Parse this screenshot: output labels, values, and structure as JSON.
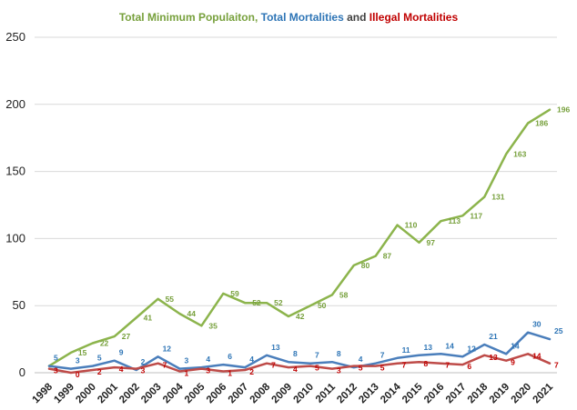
{
  "chart_data": {
    "type": "line",
    "title_parts": [
      {
        "text": "Total Minimum Populaiton, ",
        "color": "#77a03c"
      },
      {
        "text": "Total Mortalities",
        "color": "#2e75b6"
      },
      {
        "text": " and ",
        "color": "#404040"
      },
      {
        "text": "Illegal Mortalities",
        "color": "#c00000"
      }
    ],
    "x": [
      "1998",
      "1999",
      "2000",
      "2001",
      "2002",
      "2003",
      "2004",
      "2005",
      "2006",
      "2007",
      "2008",
      "2009",
      "2010",
      "2011",
      "2012",
      "2013",
      "2014",
      "2015",
      "2016",
      "2017",
      "2018",
      "2019",
      "2020",
      "2021"
    ],
    "ylim": [
      0,
      250
    ],
    "yticks": [
      0,
      50,
      100,
      150,
      200,
      250
    ],
    "grid": true,
    "series": [
      {
        "name": "Total Minimum Populaiton",
        "color": "#8cb44c",
        "label_color": "#77a03c",
        "values": [
          5,
          15,
          22,
          27,
          41,
          55,
          44,
          35,
          59,
          52,
          52,
          42,
          50,
          58,
          80,
          87,
          110,
          97,
          113,
          117,
          131,
          163,
          186,
          196
        ],
        "labels": [
          "",
          "15",
          "22",
          "27",
          "41",
          "55",
          "44",
          "35",
          "59",
          "52",
          "52",
          "42",
          "50",
          "58",
          "80",
          "87",
          "110",
          "97",
          "113",
          "117",
          "131",
          "163",
          "186",
          "196"
        ]
      },
      {
        "name": "Total Mortalities",
        "color": "#4a7ebb",
        "label_color": "#2e75b6",
        "values": [
          5,
          3,
          5,
          9,
          2,
          12,
          3,
          4,
          6,
          4,
          13,
          8,
          7,
          8,
          4,
          7,
          11,
          13,
          14,
          12,
          21,
          14,
          30,
          25
        ],
        "labels": [
          "5",
          "3",
          "5",
          "9",
          "2",
          "12",
          "3",
          "4",
          "6",
          "4",
          "13",
          "8",
          "7",
          "8",
          "4",
          "7",
          "11",
          "13",
          "14",
          "12",
          "21",
          "14",
          "30",
          "25"
        ]
      },
      {
        "name": "Illegal Mortalities",
        "color": "#be4b48",
        "label_color": "#c00000",
        "values": [
          3,
          0,
          2,
          4,
          3,
          7,
          1,
          3,
          1,
          2,
          7,
          4,
          5,
          3,
          5,
          5,
          7,
          8,
          7,
          6,
          13,
          9,
          14,
          7
        ],
        "labels": [
          "3",
          "0",
          "2",
          "4",
          "3",
          "7",
          "1",
          "3",
          "1",
          "2",
          "7",
          "4",
          "5",
          "3",
          "5",
          "5",
          "7",
          "8",
          "7",
          "6",
          "13",
          "9",
          "14",
          "7"
        ]
      }
    ]
  }
}
